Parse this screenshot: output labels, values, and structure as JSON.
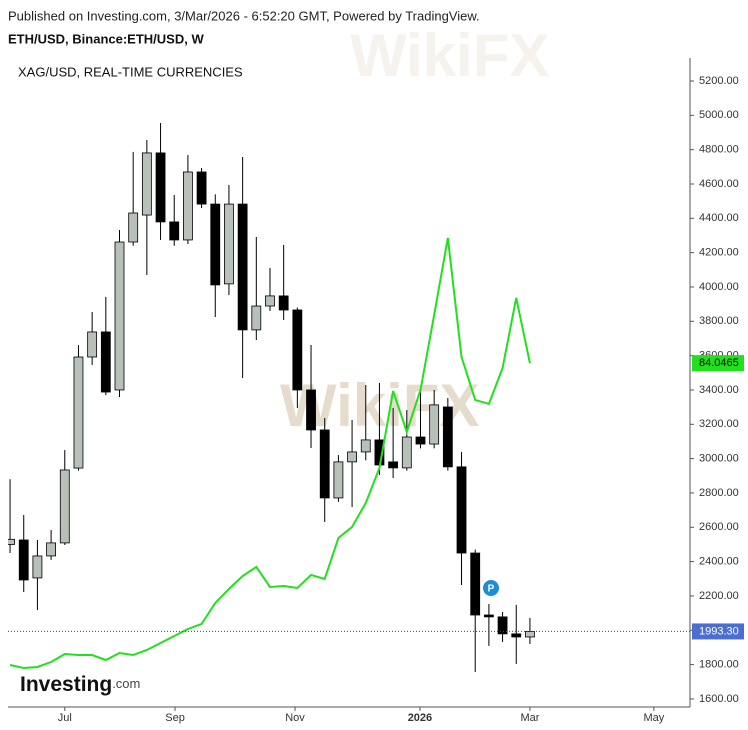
{
  "chart_data": {
    "type": "candlestick",
    "published": "Published on Investing.com, 3/Mar/2026 - 6:52:20 GMT, Powered by TradingView.",
    "watermark": "WikiFX",
    "marker": "P",
    "logo": {
      "main": "Investing",
      "suffix": ".com"
    },
    "categories": [
      null,
      null,
      null,
      null,
      null,
      null,
      null,
      null,
      null,
      null,
      null,
      null,
      null,
      null,
      null,
      null,
      null,
      null,
      null,
      null,
      null,
      null,
      null,
      null,
      null,
      null,
      null,
      null,
      null,
      null,
      null,
      null,
      null,
      null,
      null,
      null,
      null,
      null,
      null
    ],
    "xlim": [
      -0.15,
      49.7
    ],
    "xticks": [
      {
        "value": 4,
        "label": "Jul"
      },
      {
        "value": 12.06,
        "label": "Sep"
      },
      {
        "value": 20.83,
        "label": "Nov"
      },
      {
        "value": 29.96,
        "label": "2026"
      },
      {
        "value": 38,
        "label": "Mar"
      },
      {
        "value": 47.06,
        "label": "May"
      }
    ],
    "ylim": [
      1553,
      5334
    ],
    "yticks": [
      {
        "value": 1600,
        "label": "1600.00"
      },
      {
        "value": 1800,
        "label": "1800.00"
      },
      {
        "value": 2000,
        "label": "2000.00"
      },
      {
        "value": 2200,
        "label": "2200.00"
      },
      {
        "value": 2400,
        "label": "2400.00"
      },
      {
        "value": 2600,
        "label": "2600.00"
      },
      {
        "value": 2800,
        "label": "2800.00"
      },
      {
        "value": 3000,
        "label": "3000.00"
      },
      {
        "value": 3200,
        "label": "3200.00"
      },
      {
        "value": 3400,
        "label": "3400.00"
      },
      {
        "value": 3600,
        "label": "3600.00"
      },
      {
        "value": 3800,
        "label": "3800.00"
      },
      {
        "value": 4000,
        "label": "4000.00"
      },
      {
        "value": 4200,
        "label": "4200.00"
      },
      {
        "value": 4400,
        "label": "4400.00"
      },
      {
        "value": 4600,
        "label": "4600.00"
      },
      {
        "value": 4800,
        "label": "4800.00"
      },
      {
        "value": 5000,
        "label": "5000.00"
      },
      {
        "value": 5200,
        "label": "5200.00"
      }
    ],
    "y2lim": [
      30,
      132
    ],
    "series": [
      {
        "name": "ETH/USD, Binance:ETH/USD, W",
        "up_color": "#b8c0ba",
        "down_color": "#000000",
        "last_color": "#4a6fd0",
        "open": [
          2500,
          2526,
          2305,
          2433,
          2509,
          2945,
          3592,
          3738,
          3400,
          4262,
          4419,
          4781,
          4379,
          4274,
          4670,
          4483,
          4018,
          4483,
          3750,
          3889,
          3948,
          3866,
          3400,
          3167,
          2771,
          2981,
          3039,
          3109,
          2981,
          2946,
          3126,
          3085,
          3301,
          2952,
          2450,
          2089,
          2078,
          1979,
          1961
        ],
        "high": [
          2880,
          2672,
          2526,
          2584,
          3050,
          3662,
          3854,
          3942,
          4332,
          4787,
          4856,
          4955,
          4536,
          4769,
          4693,
          4540,
          4594,
          4757,
          4291,
          4111,
          4245,
          3880,
          3662,
          3237,
          3021,
          3225,
          3429,
          3441,
          3295,
          3283,
          3400,
          3400,
          3353,
          3039,
          2470,
          2153,
          2107,
          2148,
          2072
        ],
        "low": [
          2450,
          2223,
          2118,
          2410,
          2497,
          2930,
          3546,
          3370,
          3359,
          4240,
          4070,
          4274,
          4240,
          4250,
          4460,
          3825,
          3953,
          3470,
          3691,
          3860,
          3808,
          3295,
          3062,
          2631,
          2748,
          2718,
          2990,
          2905,
          2887,
          2930,
          3060,
          3060,
          2930,
          2264,
          1757,
          1909,
          1932,
          1804,
          1920
        ],
        "close": [
          2530,
          2293,
          2433,
          2509,
          2934,
          3592,
          3738,
          3388,
          4262,
          4431,
          4781,
          4379,
          4274,
          4670,
          4483,
          4012,
          4483,
          3750,
          3889,
          3948,
          3866,
          3400,
          3167,
          2771,
          2981,
          3039,
          3109,
          2963,
          2946,
          3126,
          3085,
          3313,
          2952,
          2450,
          2089,
          2078,
          1979,
          1961,
          1993.3
        ],
        "last_value_label": "1993.30"
      },
      {
        "name": "XAG/USD, REAL-TIME CURRENCIES",
        "type": "line",
        "axis": "y2",
        "color": "#22e01e",
        "values": [
          36.6,
          36.13,
          36.29,
          37.07,
          38.33,
          38.17,
          38.17,
          37.39,
          38.49,
          38.17,
          38.96,
          40.06,
          41.16,
          42.26,
          43.05,
          46.35,
          48.55,
          50.59,
          52.01,
          48.86,
          49.02,
          48.71,
          50.75,
          50.12,
          56.57,
          58.3,
          62.07,
          67.57,
          79.68,
          73.23,
          79.83,
          91.62,
          103.73,
          85.02,
          78.26,
          77.63,
          83.29,
          94.29,
          84.0465
        ]
      }
    ]
  }
}
